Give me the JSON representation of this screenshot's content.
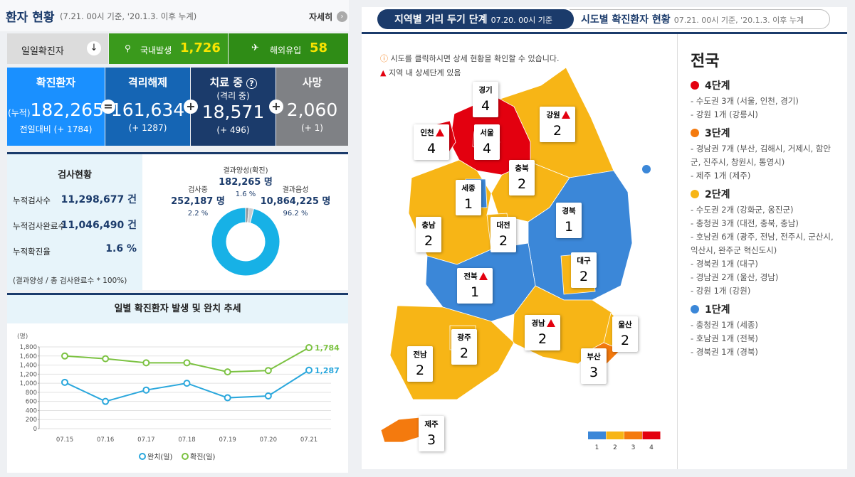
{
  "header": {
    "title": "환자 현황",
    "subtitle": "(7.21. 00시 기준, '20.1.3. 이후 누계)",
    "more": "자세히"
  },
  "daily": {
    "label": "일일확진자",
    "domestic_label": "국내발생",
    "domestic": "1,726",
    "overseas_label": "해외유입",
    "overseas": "58"
  },
  "stats": [
    {
      "title": "확진환자",
      "prefix": "(누적)",
      "value": "182,265",
      "delta": "전일대비 (+ 1784)"
    },
    {
      "title": "격리해제",
      "value": "161,634",
      "delta": "(+ 1287)"
    },
    {
      "title": "치료 중",
      "sub": "(격리 중)",
      "value": "18,571",
      "delta": "(+ 496)"
    },
    {
      "title": "사망",
      "value": "2,060",
      "delta": "(+ 1)"
    }
  ],
  "tests": {
    "title": "검사현황",
    "rows": [
      [
        "누적검사수",
        "11,298,677 건"
      ],
      [
        "누적검사완료수",
        "11,046,490 건"
      ],
      [
        "누적확진율",
        "1.6 %"
      ]
    ],
    "note": "(결과양성 / 총 검사완료수 * 100%)"
  },
  "chart_data": [
    {
      "type": "pie",
      "categories": [
        "결과양성(확진)",
        "검사중",
        "결과음성"
      ],
      "counts": [
        "182,265 명",
        "252,187 명",
        "10,864,225 명"
      ],
      "values": [
        1.6,
        2.2,
        96.2
      ],
      "value_labels": [
        "1.6 %",
        "2.2 %",
        "96.2 %"
      ],
      "colors": [
        "#8e959c",
        "#c9cdd1",
        "#17b1e6"
      ]
    },
    {
      "type": "line",
      "title": "일별 확진환자 발생 및 완치 추세",
      "y_label": "(명)",
      "categories": [
        "07.15",
        "07.16",
        "07.17",
        "07.18",
        "07.19",
        "07.20",
        "07.21"
      ],
      "ylim": [
        0,
        1800
      ],
      "yticks": [
        0,
        200,
        400,
        600,
        800,
        {
          "value": 1000,
          "label": "1,000"
        },
        {
          "value": 1200,
          "label": "1,200"
        },
        {
          "value": 1400,
          "label": "1,400"
        },
        {
          "value": 1600,
          "label": "1,600"
        },
        {
          "value": 1800,
          "label": "1,800"
        }
      ],
      "grid": true,
      "series": [
        {
          "name": "완치(일)",
          "color": "#2aa7dc",
          "values": [
            1020,
            600,
            850,
            1000,
            680,
            720,
            1287
          ],
          "value_labels": [
            null,
            null,
            null,
            null,
            null,
            null,
            "1,287"
          ]
        },
        {
          "name": "확진(일)",
          "color": "#7cc242",
          "values": [
            1600,
            1540,
            1450,
            1450,
            1250,
            1280,
            1784
          ],
          "value_labels": [
            null,
            null,
            null,
            null,
            null,
            null,
            "1,784"
          ]
        }
      ]
    }
  ],
  "map": {
    "tab_active": "지역별 거리 두기 단계",
    "tab_active_date": "07.20. 00시 기준",
    "tab_other": "시도별 확진환자 현황",
    "tab_other_date": "07.21. 00시 기준, '20.1.3. 이후 누계",
    "note_click": "시도를 클릭하시면 상세 현황을 확인할 수 있습니다.",
    "note_detail": "지역 내 상세단계 있음",
    "regions": [
      {
        "name": "경기",
        "level": 4
      },
      {
        "name": "서울",
        "level": 4
      },
      {
        "name": "인천",
        "level": 4,
        "detail": true
      },
      {
        "name": "강원",
        "level": 2,
        "detail": true
      },
      {
        "name": "충북",
        "level": 2
      },
      {
        "name": "세종",
        "level": 1
      },
      {
        "name": "충남",
        "level": 2
      },
      {
        "name": "대전",
        "level": 2
      },
      {
        "name": "경북",
        "level": 1
      },
      {
        "name": "대구",
        "level": 2
      },
      {
        "name": "전북",
        "level": 1,
        "detail": true
      },
      {
        "name": "경남",
        "level": 2,
        "detail": true
      },
      {
        "name": "울산",
        "level": 2
      },
      {
        "name": "부산",
        "level": 3
      },
      {
        "name": "광주",
        "level": 2
      },
      {
        "name": "전남",
        "level": 2
      },
      {
        "name": "제주",
        "level": 3
      }
    ],
    "levels": [
      {
        "value": 1,
        "color": "#3b87d8"
      },
      {
        "value": 2,
        "color": "#f7b516"
      },
      {
        "value": 3,
        "color": "#f47a0e"
      },
      {
        "value": 4,
        "color": "#e3000f"
      }
    ]
  },
  "summary": {
    "title": "전국",
    "groups": [
      {
        "name": "4단계",
        "level": 4,
        "items": [
          "- 수도권 3개 (서울, 인천, 경기)",
          "- 강원 1개 (강릉시)"
        ]
      },
      {
        "name": "3단계",
        "level": 3,
        "items": [
          "- 경남권 7개 (부산, 김해시, 거제시, 함안군, 진주시, 창원시, 통영시)",
          "- 제주 1개 (제주)"
        ]
      },
      {
        "name": "2단계",
        "level": 2,
        "items": [
          "- 수도권 2개 (강화군, 옹진군)",
          "- 충청권 3개 (대전, 충북, 충남)",
          "- 호남권 6개 (광주, 전남, 전주시, 군산시, 익산시, 완주군 혁신도시)",
          "- 경북권 1개 (대구)",
          "- 경남권 2개 (울산, 경남)",
          "- 강원 1개 (강원)"
        ]
      },
      {
        "name": "1단계",
        "level": 1,
        "items": [
          "- 충청권 1개 (세종)",
          "- 호남권 1개 (전북)",
          "- 경북권 1개 (경북)"
        ]
      }
    ]
  }
}
